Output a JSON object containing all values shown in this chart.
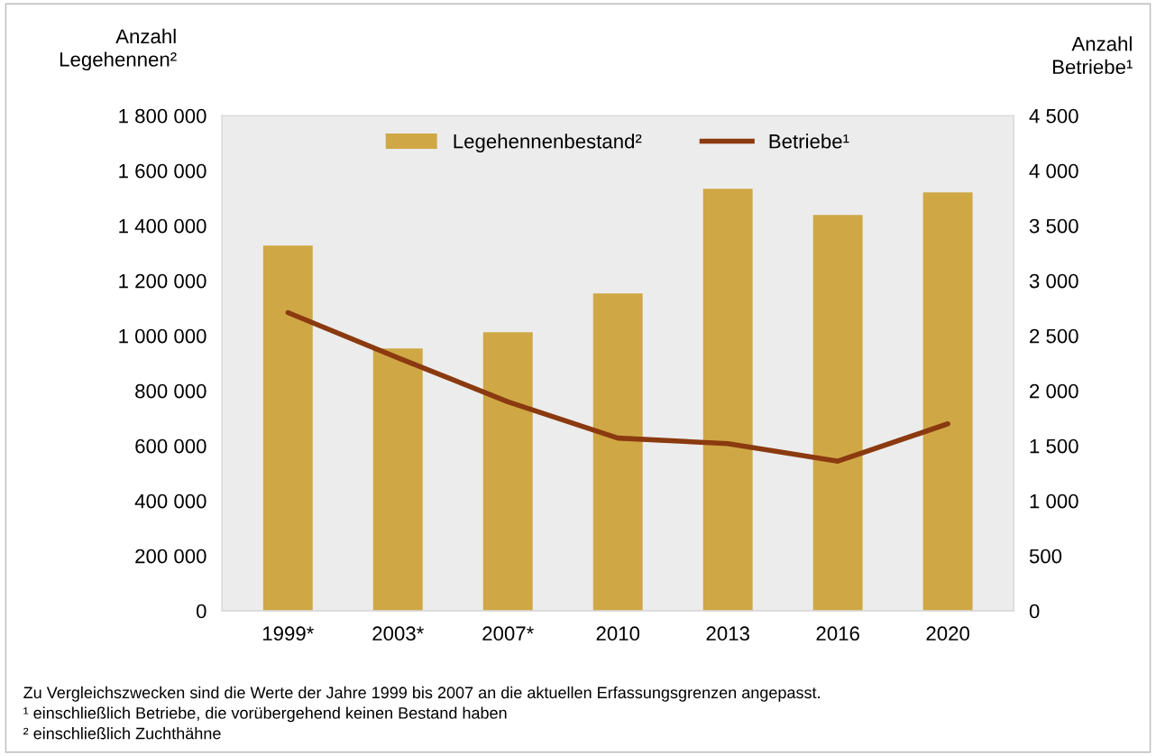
{
  "chart_data": {
    "type": "bar",
    "categories": [
      "1999*",
      "2003*",
      "2007*",
      "2010",
      "2013",
      "2016",
      "2020"
    ],
    "ylabel": "Anzahl\nLegehennen²",
    "y2label": "Anzahl\nBetriebe¹",
    "series": [
      {
        "name": "Legehennenbestand²",
        "color": "#cfa845",
        "values": [
          1328000,
          954000,
          1013000,
          1154000,
          1534000,
          1439000,
          1521000
        ]
      },
      {
        "name": "Betriebe¹",
        "type": "line",
        "axis": "y2",
        "color": "#8b3a10",
        "values": [
          2710,
          2300,
          1900,
          1570,
          1520,
          1360,
          1700
        ]
      }
    ],
    "ylim": [
      0,
      1800000
    ],
    "yticks": [
      {
        "value": 0,
        "label": "0"
      },
      {
        "value": 200000,
        "label": "200 000"
      },
      {
        "value": 400000,
        "label": "400 000"
      },
      {
        "value": 600000,
        "label": "600 000"
      },
      {
        "value": 800000,
        "label": "800 000"
      },
      {
        "value": 1000000,
        "label": "1 000 000"
      },
      {
        "value": 1200000,
        "label": "1 200 000"
      },
      {
        "value": 1400000,
        "label": "1 400 000"
      },
      {
        "value": 1600000,
        "label": "1 600 000"
      },
      {
        "value": 1800000,
        "label": "1 800 000"
      }
    ],
    "y2lim": [
      0,
      4500
    ],
    "y2ticks": [
      {
        "value": 0,
        "label": "0"
      },
      {
        "value": 500,
        "label": "500"
      },
      {
        "value": 1000,
        "label": "1 000"
      },
      {
        "value": 1500,
        "label": "1 500"
      },
      {
        "value": 2000,
        "label": "2 000"
      },
      {
        "value": 2500,
        "label": "2 500"
      },
      {
        "value": 3000,
        "label": "3 000"
      },
      {
        "value": 3500,
        "label": "3 500"
      },
      {
        "value": 4000,
        "label": "4 000"
      },
      {
        "value": 4500,
        "label": "4 500"
      }
    ],
    "legend": "top",
    "grid": false,
    "annotations": [
      "Zu Vergleichszwecken sind die Werte der Jahre 1999 bis 2007 an die aktuellen Erfassungsgrenzen angepasst.",
      "¹ einschließlich Betriebe, die vorübergehend keinen Bestand haben",
      "² einschließlich Zuchthähne"
    ]
  }
}
